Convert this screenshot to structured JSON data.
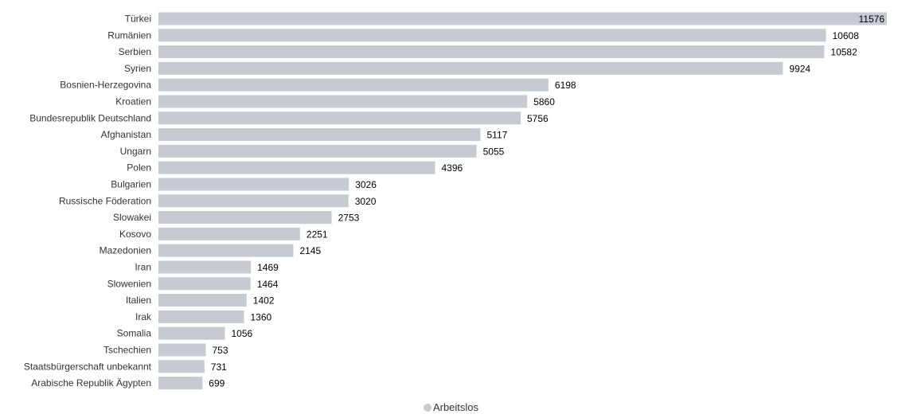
{
  "chart_data": {
    "type": "bar",
    "orientation": "horizontal",
    "categories": [
      "Türkei",
      "Rumänien",
      "Serbien",
      "Syrien",
      "Bosnien-Herzegovina",
      "Kroatien",
      "Bundesrepublik Deutschland",
      "Afghanistan",
      "Ungarn",
      "Polen",
      "Bulgarien",
      "Russische Föderation",
      "Slowakei",
      "Kosovo",
      "Mazedonien",
      "Iran",
      "Slowenien",
      "Italien",
      "Irak",
      "Somalia",
      "Tschechien",
      "Staatsbürgerschaft unbekannt",
      "Arabische Republik Ägypten"
    ],
    "series": [
      {
        "name": "Arbeitslos",
        "color": "#c6cbd1",
        "values": [
          11576,
          10608,
          10582,
          9924,
          6198,
          5860,
          5756,
          5117,
          5055,
          4396,
          3026,
          3020,
          2753,
          2251,
          2145,
          1469,
          1464,
          1402,
          1360,
          1056,
          753,
          731,
          699
        ]
      }
    ],
    "xlim": [
      0,
      11576
    ],
    "grid": false,
    "data_labels": true,
    "legend_position": "bottom-center"
  }
}
